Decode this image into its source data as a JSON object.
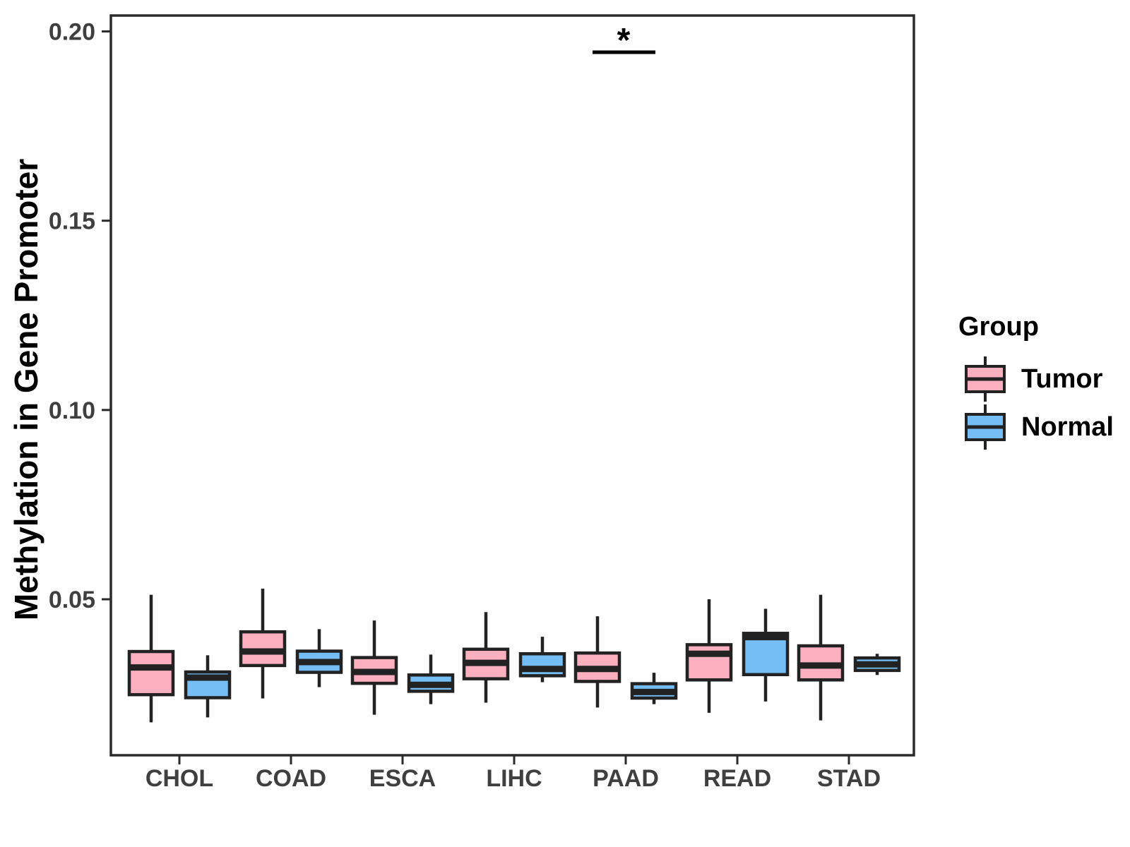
{
  "page": {
    "background": "#FFFFFF"
  },
  "chart_data": {
    "type": "boxplot",
    "title": "",
    "xlabel": "",
    "ylabel": "Methylation in Gene Promoter",
    "categories": [
      "CHOL",
      "COAD",
      "ESCA",
      "LIHC",
      "PAAD",
      "READ",
      "STAD"
    ],
    "y_ticks": [
      0.05,
      0.1,
      0.15,
      0.2
    ],
    "y_tick_labels": [
      "0.05",
      "0.10",
      "0.15",
      "0.20"
    ],
    "ylim": [
      0.0088,
      0.2042
    ],
    "grid": false,
    "legend_position": "right",
    "series": [
      {
        "name": "Tumor",
        "fill": "#FBAFBF",
        "boxes": [
          {
            "category": "CHOL",
            "whisker_low": 0.0175,
            "q1": 0.0248,
            "median": 0.032,
            "q3": 0.0362,
            "whisker_high": 0.0512
          },
          {
            "category": "COAD",
            "whisker_low": 0.0238,
            "q1": 0.0325,
            "median": 0.0362,
            "q3": 0.0414,
            "whisker_high": 0.0528
          },
          {
            "category": "ESCA",
            "whisker_low": 0.0195,
            "q1": 0.0278,
            "median": 0.0308,
            "q3": 0.0346,
            "whisker_high": 0.0444
          },
          {
            "category": "LIHC",
            "whisker_low": 0.0227,
            "q1": 0.029,
            "median": 0.0332,
            "q3": 0.0368,
            "whisker_high": 0.0466
          },
          {
            "category": "PAAD",
            "whisker_low": 0.0214,
            "q1": 0.0283,
            "median": 0.0316,
            "q3": 0.0358,
            "whisker_high": 0.0455
          },
          {
            "category": "READ",
            "whisker_low": 0.02,
            "q1": 0.0287,
            "median": 0.0356,
            "q3": 0.038,
            "whisker_high": 0.05
          },
          {
            "category": "STAD",
            "whisker_low": 0.018,
            "q1": 0.0287,
            "median": 0.0325,
            "q3": 0.0377,
            "whisker_high": 0.0512
          }
        ]
      },
      {
        "name": "Normal",
        "fill": "#74BEF5",
        "boxes": [
          {
            "category": "CHOL",
            "whisker_low": 0.0188,
            "q1": 0.024,
            "median": 0.0293,
            "q3": 0.0308,
            "whisker_high": 0.0352
          },
          {
            "category": "COAD",
            "whisker_low": 0.0268,
            "q1": 0.0307,
            "median": 0.0334,
            "q3": 0.0363,
            "whisker_high": 0.0421
          },
          {
            "category": "ESCA",
            "whisker_low": 0.0223,
            "q1": 0.0257,
            "median": 0.0274,
            "q3": 0.03,
            "whisker_high": 0.0354
          },
          {
            "category": "LIHC",
            "whisker_low": 0.0281,
            "q1": 0.0298,
            "median": 0.0316,
            "q3": 0.0356,
            "whisker_high": 0.0401
          },
          {
            "category": "PAAD",
            "whisker_low": 0.0223,
            "q1": 0.0239,
            "median": 0.0255,
            "q3": 0.0277,
            "whisker_high": 0.0306
          },
          {
            "category": "READ",
            "whisker_low": 0.023,
            "q1": 0.0301,
            "median": 0.04,
            "q3": 0.041,
            "whisker_high": 0.0475
          },
          {
            "category": "STAD",
            "whisker_low": 0.03,
            "q1": 0.0312,
            "median": 0.0328,
            "q3": 0.0345,
            "whisker_high": 0.0356
          }
        ]
      }
    ],
    "significance": {
      "category": "PAAD",
      "label": "*",
      "bar_y_value": 0.1945
    }
  },
  "legend": {
    "title": "Group",
    "items": [
      {
        "label": "Tumor",
        "color": "#FBAFBF"
      },
      {
        "label": "Normal",
        "color": "#74BEF5"
      }
    ]
  },
  "style": {
    "box_stroke": "#222222",
    "axis_color": "#2B2B2B",
    "tick_text_color": "#3F3F3F",
    "text_color": "#000000",
    "background": "#FFFFFF"
  }
}
